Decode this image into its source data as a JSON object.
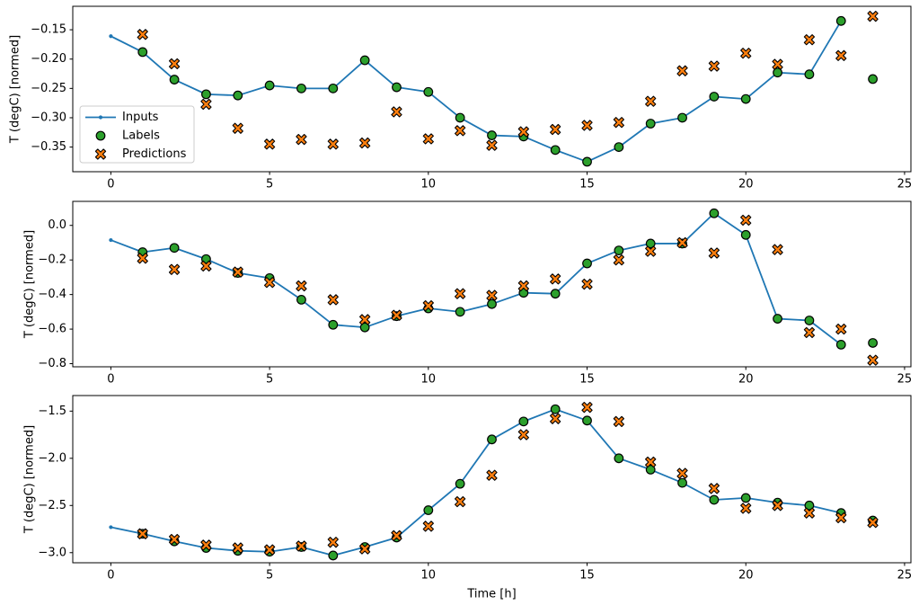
{
  "figure": {
    "xlabel": "Time [h]",
    "background": "#ffffff",
    "spine_color": "#000000",
    "legend_border_color": "#cccccc",
    "legend": {
      "entries": [
        {
          "label": "Inputs",
          "marker": "line-dot",
          "color": "#1f77b4"
        },
        {
          "label": "Labels",
          "marker": "circle",
          "color": "#2ca02c"
        },
        {
          "label": "Predictions",
          "marker": "X",
          "color": "#ff7f0e"
        }
      ]
    }
  },
  "chart_data": [
    {
      "type": "line",
      "title": "",
      "xlabel": "",
      "ylabel": "T (degC) [normed]",
      "xlim": [
        -1.2,
        25.2
      ],
      "ylim": [
        -0.392,
        -0.11
      ],
      "xticks": [
        0,
        5,
        10,
        15,
        20,
        25
      ],
      "yticks": [
        -0.15,
        -0.2,
        -0.25,
        -0.3,
        -0.35
      ],
      "ytick_labels": [
        "−0.15",
        "−0.20",
        "−0.25",
        "−0.30",
        "−0.35"
      ],
      "grid": false,
      "legend": {
        "visible": true,
        "location": "center left"
      },
      "series": [
        {
          "name": "Inputs",
          "kind": "line",
          "marker": "dot",
          "color": "#1f77b4",
          "x_start": 0,
          "values": [
            -0.161,
            -0.188,
            -0.235,
            -0.26,
            -0.262,
            -0.245,
            -0.25,
            -0.25,
            -0.202,
            -0.248,
            -0.256,
            -0.3,
            -0.33,
            -0.332,
            -0.355,
            -0.375,
            -0.35,
            -0.31,
            -0.3,
            -0.264,
            -0.268,
            -0.223,
            -0.226,
            -0.135
          ]
        },
        {
          "name": "Labels",
          "kind": "scatter",
          "marker": "circle",
          "color": "#2ca02c",
          "x_start": 1,
          "values": [
            -0.188,
            -0.235,
            -0.26,
            -0.262,
            -0.245,
            -0.25,
            -0.25,
            -0.202,
            -0.248,
            -0.256,
            -0.3,
            -0.33,
            -0.332,
            -0.355,
            -0.375,
            -0.35,
            -0.31,
            -0.3,
            -0.264,
            -0.268,
            -0.223,
            -0.226,
            -0.135,
            -0.234
          ]
        },
        {
          "name": "Predictions",
          "kind": "scatter",
          "marker": "X",
          "color": "#ff7f0e",
          "x_start": 1,
          "values": [
            -0.158,
            -0.208,
            -0.277,
            -0.318,
            -0.345,
            -0.337,
            -0.345,
            -0.343,
            -0.29,
            -0.336,
            -0.322,
            -0.347,
            -0.324,
            -0.32,
            -0.313,
            -0.308,
            -0.272,
            -0.22,
            -0.212,
            -0.19,
            -0.209,
            -0.167,
            -0.194,
            -0.127
          ]
        }
      ]
    },
    {
      "type": "line",
      "title": "",
      "xlabel": "",
      "ylabel": "T (degC) [normed]",
      "xlim": [
        -1.2,
        25.2
      ],
      "ylim": [
        -0.818,
        0.139
      ],
      "xticks": [
        0,
        5,
        10,
        15,
        20,
        25
      ],
      "yticks": [
        0.0,
        -0.2,
        -0.4,
        -0.6,
        -0.8
      ],
      "ytick_labels": [
        "0.0",
        "−0.2",
        "−0.4",
        "−0.6",
        "−0.8"
      ],
      "grid": false,
      "legend": {
        "visible": false
      },
      "series": [
        {
          "name": "Inputs",
          "kind": "line",
          "marker": "dot",
          "color": "#1f77b4",
          "x_start": 0,
          "values": [
            -0.085,
            -0.155,
            -0.13,
            -0.195,
            -0.275,
            -0.305,
            -0.43,
            -0.575,
            -0.59,
            -0.525,
            -0.48,
            -0.5,
            -0.455,
            -0.39,
            -0.395,
            -0.22,
            -0.145,
            -0.105,
            -0.105,
            0.07,
            -0.055,
            -0.54,
            -0.55,
            -0.69
          ]
        },
        {
          "name": "Labels",
          "kind": "scatter",
          "marker": "circle",
          "color": "#2ca02c",
          "x_start": 1,
          "values": [
            -0.155,
            -0.13,
            -0.195,
            -0.275,
            -0.305,
            -0.43,
            -0.575,
            -0.59,
            -0.525,
            -0.48,
            -0.5,
            -0.455,
            -0.39,
            -0.395,
            -0.22,
            -0.145,
            -0.105,
            -0.105,
            0.07,
            -0.055,
            -0.54,
            -0.55,
            -0.69,
            -0.68
          ]
        },
        {
          "name": "Predictions",
          "kind": "scatter",
          "marker": "X",
          "color": "#ff7f0e",
          "x_start": 1,
          "values": [
            -0.19,
            -0.255,
            -0.235,
            -0.27,
            -0.33,
            -0.35,
            -0.43,
            -0.545,
            -0.52,
            -0.465,
            -0.395,
            -0.405,
            -0.35,
            -0.31,
            -0.34,
            -0.2,
            -0.15,
            -0.1,
            -0.16,
            0.03,
            -0.14,
            -0.62,
            -0.6,
            -0.78
          ]
        }
      ]
    },
    {
      "type": "line",
      "title": "",
      "xlabel": "Time [h]",
      "ylabel": "T (degC) [normed]",
      "xlim": [
        -1.2,
        25.2
      ],
      "ylim": [
        -3.107,
        -1.335
      ],
      "xticks": [
        0,
        5,
        10,
        15,
        20,
        25
      ],
      "yticks": [
        -1.5,
        -2.0,
        -2.5,
        -3.0
      ],
      "ytick_labels": [
        "−1.5",
        "−2.0",
        "−2.5",
        "−3.0"
      ],
      "grid": false,
      "legend": {
        "visible": false
      },
      "series": [
        {
          "name": "Inputs",
          "kind": "line",
          "marker": "dot",
          "color": "#1f77b4",
          "x_start": 0,
          "values": [
            -2.73,
            -2.8,
            -2.88,
            -2.95,
            -2.98,
            -2.99,
            -2.94,
            -3.03,
            -2.94,
            -2.84,
            -2.55,
            -2.27,
            -1.8,
            -1.61,
            -1.48,
            -1.6,
            -2.0,
            -2.12,
            -2.26,
            -2.44,
            -2.42,
            -2.47,
            -2.5,
            -2.58
          ]
        },
        {
          "name": "Labels",
          "kind": "scatter",
          "marker": "circle",
          "color": "#2ca02c",
          "x_start": 1,
          "values": [
            -2.8,
            -2.88,
            -2.95,
            -2.98,
            -2.99,
            -2.94,
            -3.03,
            -2.94,
            -2.84,
            -2.55,
            -2.27,
            -1.8,
            -1.61,
            -1.48,
            -1.6,
            -2.0,
            -2.12,
            -2.26,
            -2.44,
            -2.42,
            -2.47,
            -2.5,
            -2.58,
            -2.66
          ]
        },
        {
          "name": "Predictions",
          "kind": "scatter",
          "marker": "X",
          "color": "#ff7f0e",
          "x_start": 1,
          "values": [
            -2.8,
            -2.86,
            -2.92,
            -2.95,
            -2.97,
            -2.93,
            -2.89,
            -2.96,
            -2.82,
            -2.72,
            -2.46,
            -2.18,
            -1.75,
            -1.58,
            -1.46,
            -1.61,
            -2.04,
            -2.16,
            -2.32,
            -2.53,
            -2.5,
            -2.58,
            -2.63,
            -2.68
          ]
        }
      ]
    }
  ]
}
